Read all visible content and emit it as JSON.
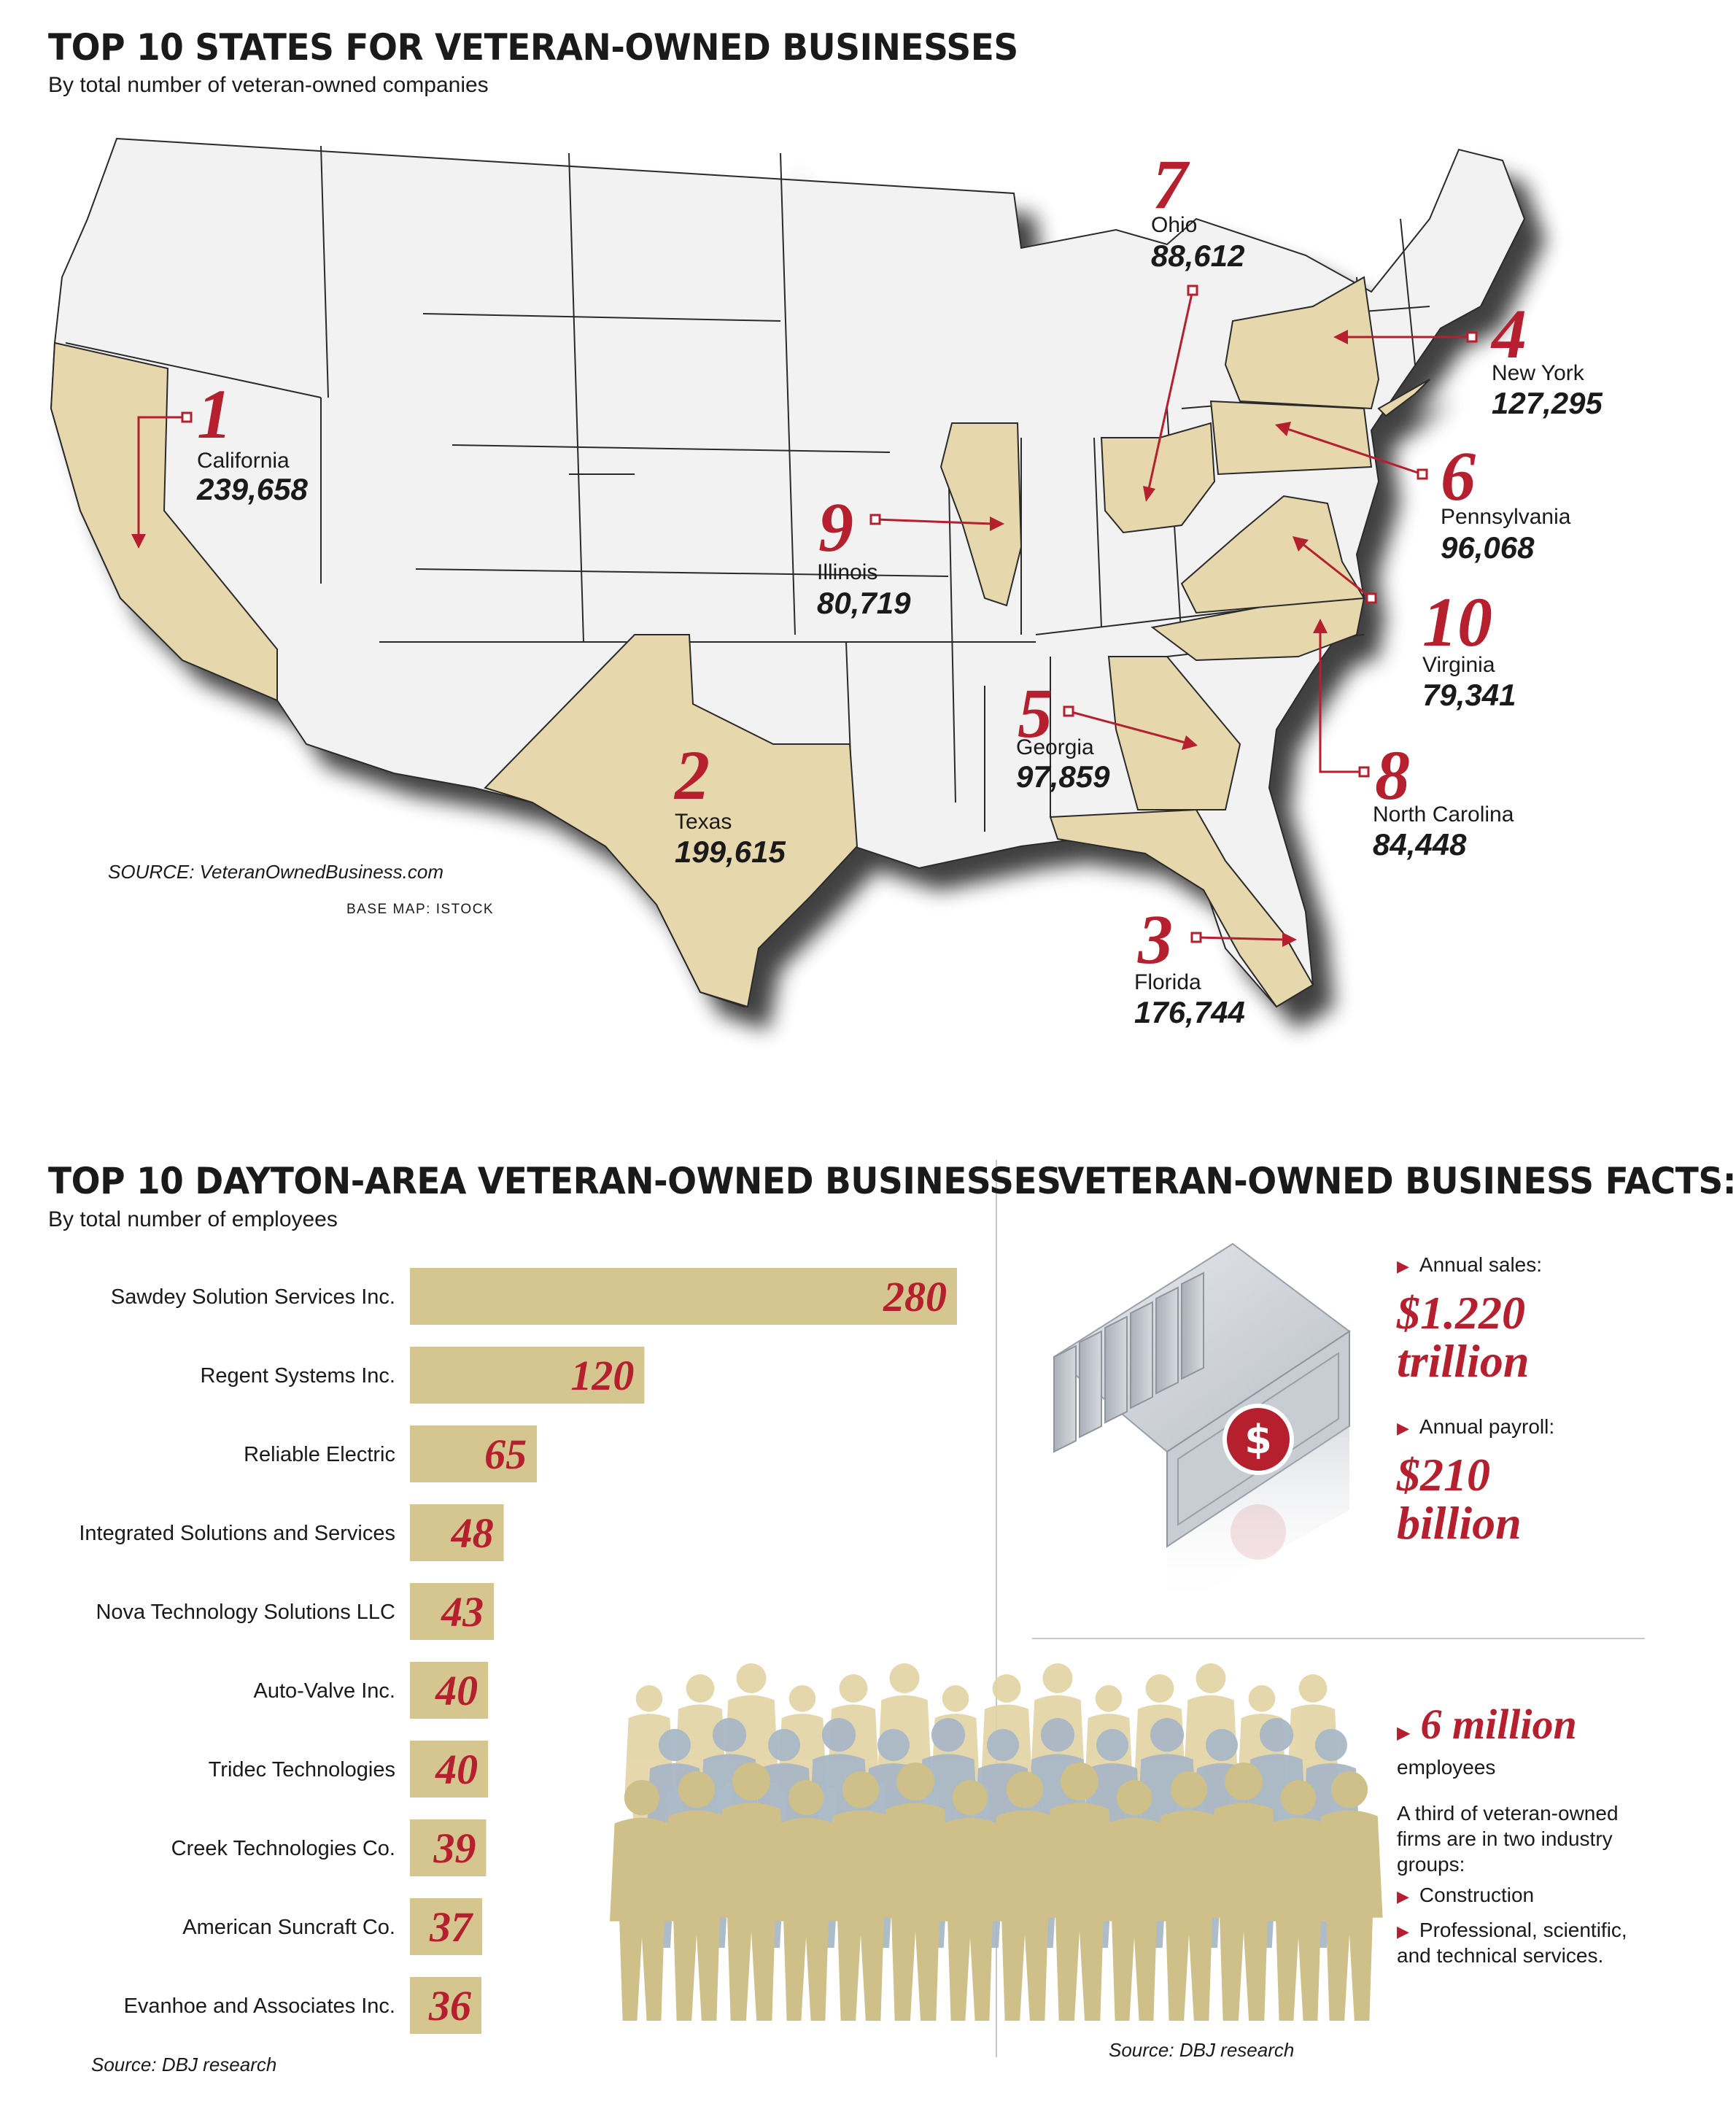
{
  "map_section": {
    "title": "TOP 10 STATES FOR VETERAN-OWNED BUSINESSES",
    "subtitle": "By total number of veteran-owned companies",
    "source": "SOURCE: VeteranOwnedBusiness.com",
    "base_map": "BASE MAP: ISTOCK",
    "states": [
      {
        "rank": "1",
        "name": "California",
        "value": "239,658"
      },
      {
        "rank": "2",
        "name": "Texas",
        "value": "199,615"
      },
      {
        "rank": "3",
        "name": "Florida",
        "value": "176,744"
      },
      {
        "rank": "4",
        "name": "New York",
        "value": "127,295"
      },
      {
        "rank": "5",
        "name": "Georgia",
        "value": "97,859"
      },
      {
        "rank": "6",
        "name": "Pennsylvania",
        "value": "96,068"
      },
      {
        "rank": "7",
        "name": "Ohio",
        "value": "88,612"
      },
      {
        "rank": "8",
        "name": "North Carolina",
        "value": "84,448"
      },
      {
        "rank": "9",
        "name": "Illinois",
        "value": "80,719"
      },
      {
        "rank": "10",
        "name": "Virginia",
        "value": "79,341"
      }
    ]
  },
  "dayton_section": {
    "title": "TOP 10 DAYTON-AREA VETERAN-OWNED BUSINESSES",
    "subtitle": "By total number of employees",
    "source": "Source: DBJ research"
  },
  "chart_data": {
    "type": "bar",
    "orientation": "horizontal",
    "title": "TOP 10 DAYTON-AREA VETERAN-OWNED BUSINESSES",
    "subtitle": "By total number of employees",
    "categories": [
      "Sawdey Solution Services Inc.",
      "Regent Systems Inc.",
      "Reliable Electric",
      "Integrated Solutions and Services",
      "Nova Technology Solutions LLC",
      "Auto-Valve Inc.",
      "Tridec Technologies",
      "Creek Technologies Co.",
      "American Suncraft Co.",
      "Evanhoe and Associates Inc."
    ],
    "values": [
      280,
      120,
      65,
      48,
      43,
      40,
      40,
      39,
      37,
      36
    ],
    "xlim": [
      0,
      280
    ],
    "grid": false,
    "bar_color": "#d5c690",
    "label_color": "#b51f2e"
  },
  "facts_section": {
    "title": "VETERAN-OWNED BUSINESS FACTS:",
    "sales_label": "Annual sales:",
    "sales_value_1": "$1.220",
    "sales_value_2": "trillion",
    "payroll_label": "Annual payroll:",
    "payroll_value_1": "$210",
    "payroll_value_2": "billion",
    "employees_value": "6 million",
    "employees_label": "employees",
    "industry_intro": "A third of veteran-owned firms are in two industry groups:",
    "industries": [
      "Construction",
      "Professional, scientific, and technical services."
    ],
    "source": "Source: DBJ research"
  },
  "colors": {
    "accent_red": "#b51f2e",
    "state_highlight": "#e6d7ac",
    "state_fill": "#f2f2f2",
    "bar": "#d5c690"
  }
}
